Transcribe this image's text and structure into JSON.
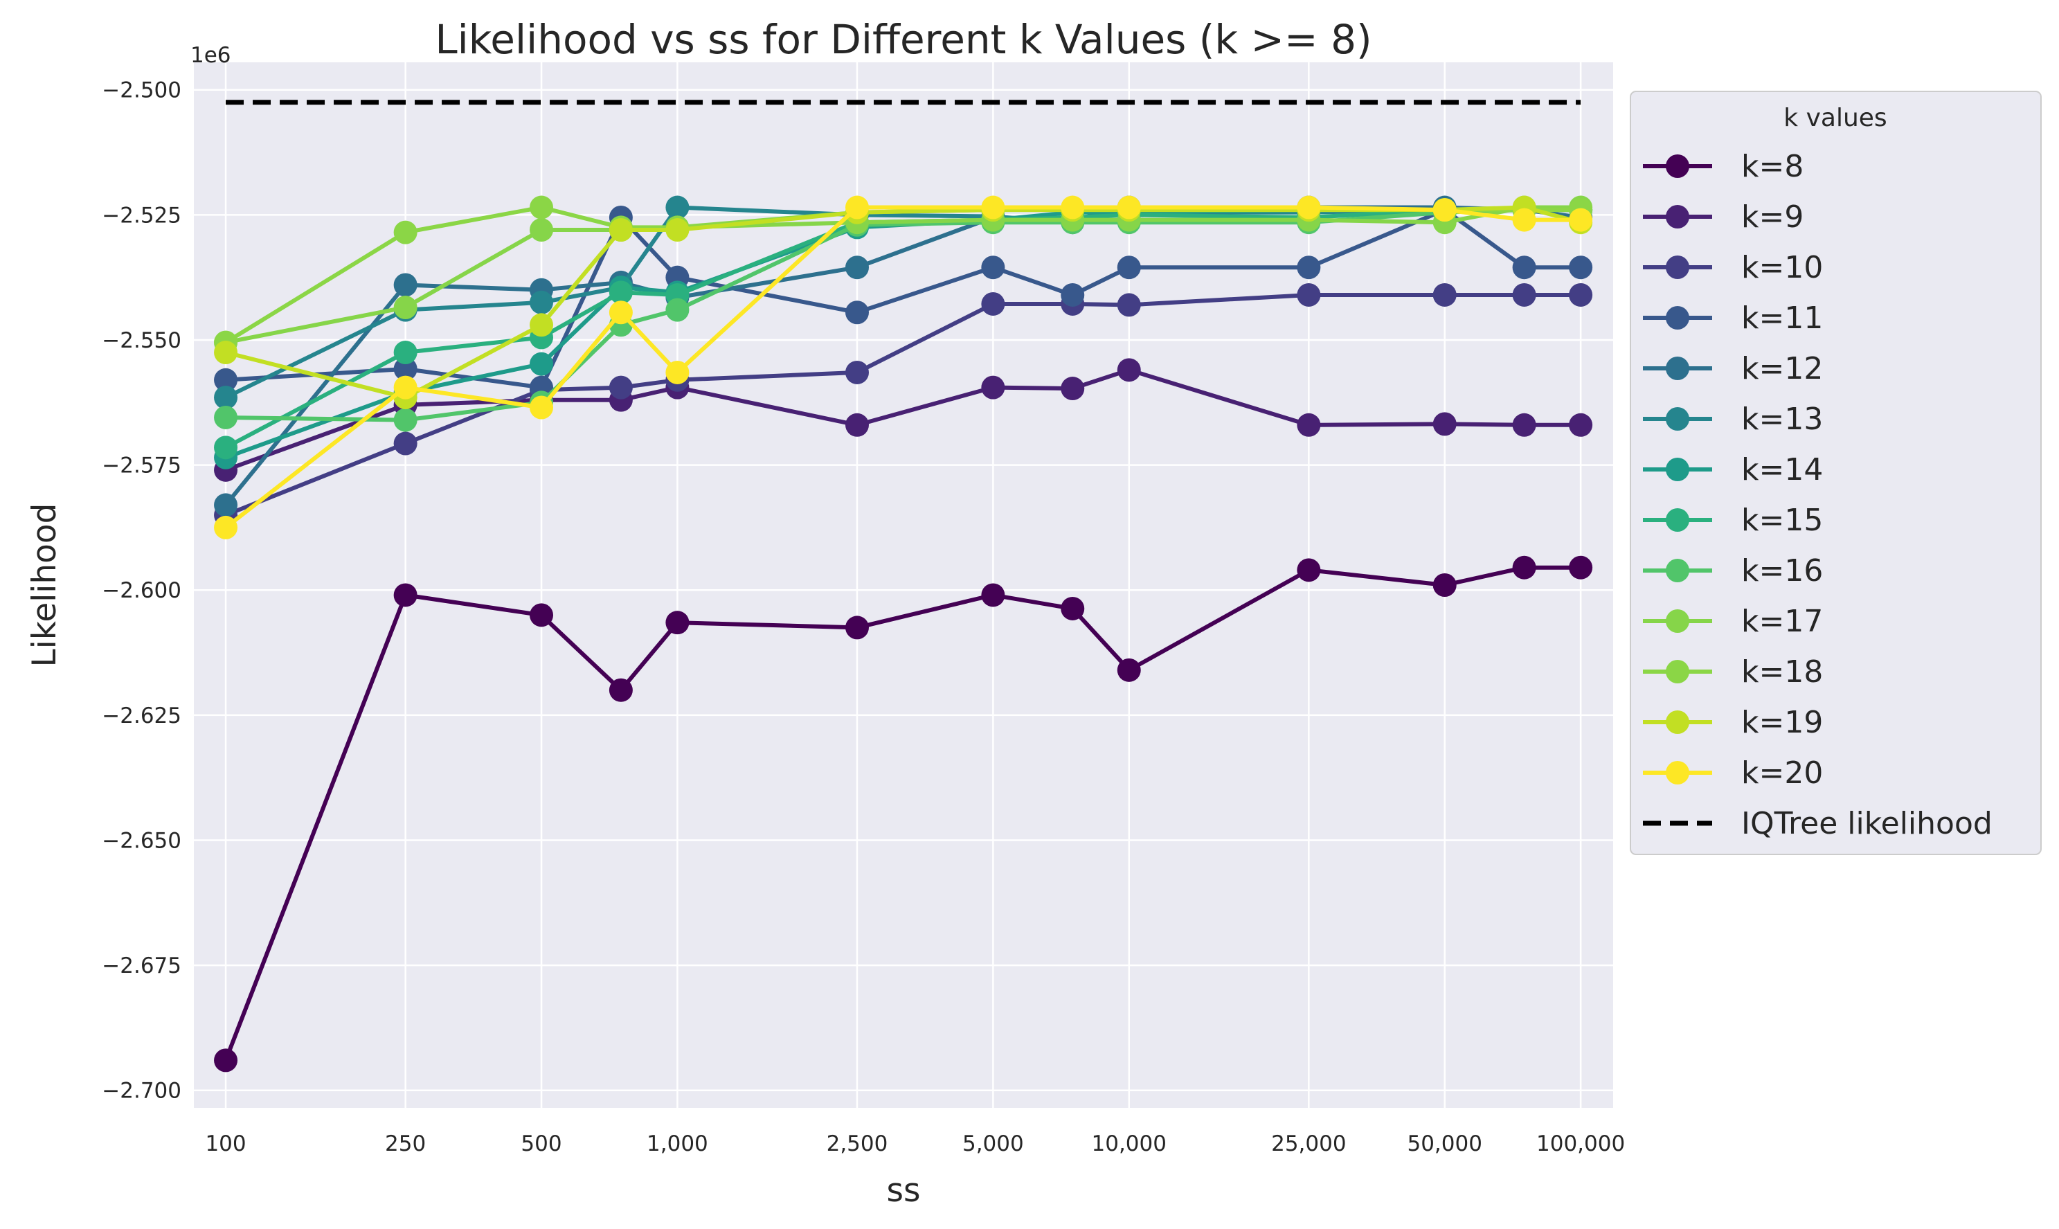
{
  "chart_data": {
    "type": "line",
    "title": "Likelihood vs ss for Different k Values (k >= 8)",
    "xlabel": "ss",
    "ylabel": "Likelihood",
    "y_offset_label": "1e6",
    "x_scale": "log",
    "xlim": [
      85,
      118000
    ],
    "ylim": [
      -2.7035,
      -2.4945
    ],
    "grid": true,
    "legend_title": "k values",
    "legend_position": "outside-right-top",
    "x_ticks": [
      100,
      250,
      500,
      1000,
      2500,
      5000,
      10000,
      25000,
      50000,
      100000
    ],
    "x_tick_labels": [
      "100",
      "250",
      "500",
      "1,000",
      "2,500",
      "5,000",
      "10,000",
      "25,000",
      "50,000",
      "100,000"
    ],
    "y_ticks": [
      -2.7,
      -2.675,
      -2.65,
      -2.625,
      -2.6,
      -2.575,
      -2.55,
      -2.525,
      -2.5
    ],
    "y_tick_labels": [
      "−2.700",
      "−2.675",
      "−2.650",
      "−2.625",
      "−2.600",
      "−2.575",
      "−2.550",
      "−2.525",
      "−2.500"
    ],
    "x": [
      100,
      250,
      500,
      750,
      1000,
      2500,
      5000,
      7500,
      10000,
      25000,
      50000,
      75000,
      100000
    ],
    "series": [
      {
        "name": "k=8",
        "color": "#440154",
        "values": [
          -2.694,
          -2.601,
          -2.605,
          -2.62,
          -2.6065,
          -2.6075,
          -2.601,
          -2.6037,
          -2.616,
          -2.596,
          -2.599,
          -2.5955,
          -2.5955
        ]
      },
      {
        "name": "k=9",
        "color": "#482173",
        "values": [
          -2.576,
          -2.563,
          -2.562,
          -2.562,
          -2.5595,
          -2.567,
          -2.5595,
          -2.5597,
          -2.556,
          -2.567,
          -2.5668,
          -2.567,
          -2.567
        ]
      },
      {
        "name": "k=10",
        "color": "#433e85",
        "values": [
          -2.585,
          -2.5707,
          -2.56,
          -2.5595,
          -2.558,
          -2.5565,
          -2.5428,
          -2.5428,
          -2.543,
          -2.541,
          -2.541,
          -2.541,
          -2.541
        ]
      },
      {
        "name": "k=11",
        "color": "#38588c",
        "values": [
          -2.558,
          -2.5558,
          -2.5595,
          -2.5255,
          -2.5375,
          -2.5445,
          -2.5355,
          -2.541,
          -2.5355,
          -2.5355,
          -2.524,
          -2.5355,
          -2.5355
        ]
      },
      {
        "name": "k=12",
        "color": "#2d708e",
        "values": [
          -2.583,
          -2.539,
          -2.54,
          -2.5385,
          -2.5415,
          -2.5355,
          -2.5255,
          -2.526,
          -2.5235,
          -2.5235,
          -2.5235,
          -2.524,
          -2.5255
        ]
      },
      {
        "name": "k=13",
        "color": "#25858e",
        "values": [
          -2.5615,
          -2.544,
          -2.5425,
          -2.5395,
          -2.5235,
          -2.525,
          -2.5253,
          -2.5265,
          -2.5245,
          -2.5245,
          -2.524,
          -2.524,
          -2.524
        ]
      },
      {
        "name": "k=14",
        "color": "#1e9b8a",
        "values": [
          -2.5735,
          -2.5605,
          -2.5548,
          -2.5395,
          -2.5405,
          -2.5275,
          -2.526,
          -2.5245,
          -2.5245,
          -2.524,
          -2.524,
          -2.524,
          -2.524
        ]
      },
      {
        "name": "k=15",
        "color": "#2ab07f",
        "values": [
          -2.5715,
          -2.5525,
          -2.5495,
          -2.5405,
          -2.541,
          -2.5265,
          -2.526,
          -2.5255,
          -2.525,
          -2.5255,
          -2.524,
          -2.524,
          -2.524
        ]
      },
      {
        "name": "k=16",
        "color": "#51c56a",
        "values": [
          -2.5655,
          -2.566,
          -2.5625,
          -2.547,
          -2.544,
          -2.527,
          -2.5265,
          -2.5265,
          -2.5265,
          -2.5265,
          -2.5245,
          -2.524,
          -2.524
        ]
      },
      {
        "name": "k=17",
        "color": "#86d549",
        "values": [
          -2.5505,
          -2.5435,
          -2.528,
          -2.528,
          -2.5275,
          -2.5265,
          -2.526,
          -2.526,
          -2.526,
          -2.526,
          -2.5265,
          -2.5235,
          -2.5235
        ]
      },
      {
        "name": "k=18",
        "color": "#8bd646",
        "values": [
          -2.5505,
          -2.5285,
          -2.5235,
          -2.5275,
          -2.5275,
          -2.5245,
          -2.524,
          -2.524,
          -2.524,
          -2.524,
          -2.524,
          -2.524,
          -2.524
        ]
      },
      {
        "name": "k=19",
        "color": "#c2df23",
        "values": [
          -2.5525,
          -2.5615,
          -2.547,
          -2.528,
          -2.528,
          -2.5245,
          -2.524,
          -2.524,
          -2.524,
          -2.524,
          -2.524,
          -2.5235,
          -2.5265
        ]
      },
      {
        "name": "k=20",
        "color": "#fde725",
        "values": [
          -2.5875,
          -2.5595,
          -2.5635,
          -2.5445,
          -2.5565,
          -2.5235,
          -2.5235,
          -2.5235,
          -2.5235,
          -2.5235,
          -2.524,
          -2.526,
          -2.526
        ]
      }
    ],
    "reference_line": {
      "name": "IQTree likelihood",
      "value": -2.5025,
      "color": "#000000",
      "x_start": 100,
      "x_end": 100000
    }
  }
}
